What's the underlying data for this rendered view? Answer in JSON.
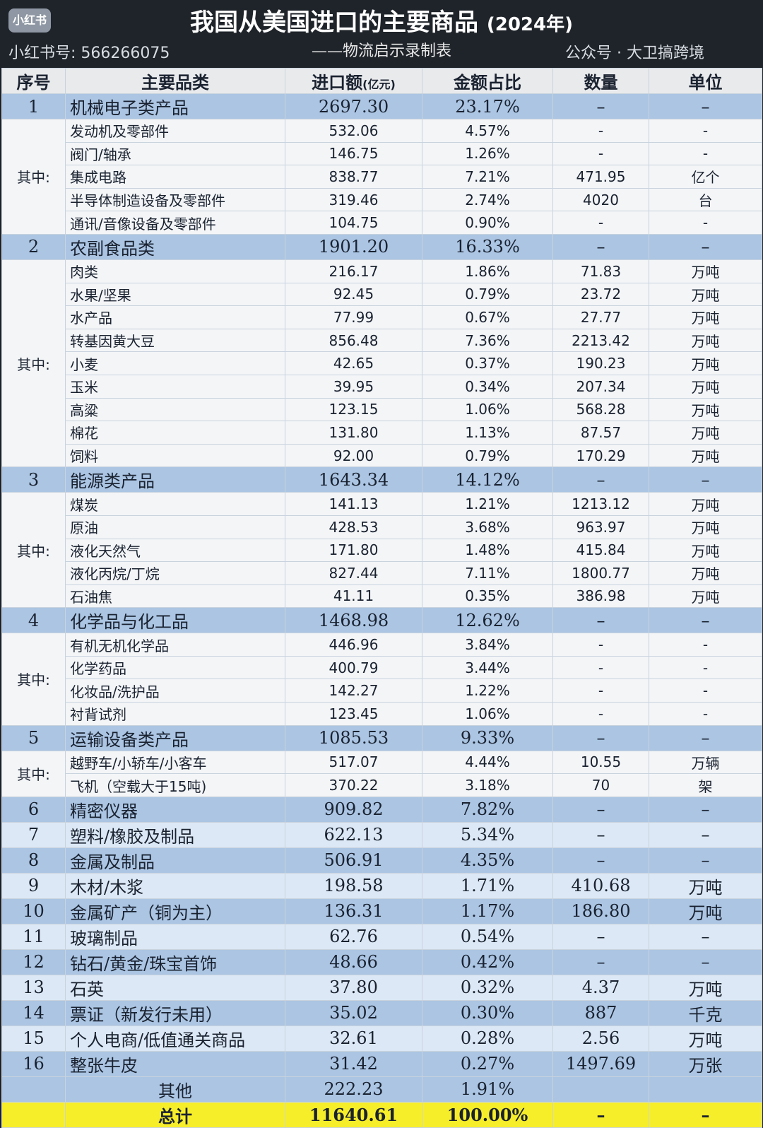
{
  "header": {
    "title": "我国从美国进口的主要商品",
    "year": "(2024年)",
    "subtitle": "——物流启示录制表"
  },
  "columns": [
    "序号",
    "主要品类",
    "进口额",
    "(亿元)",
    "金额占比",
    "数量",
    "单位"
  ],
  "group_label": "其中:",
  "sections": [
    {
      "no": "1",
      "name": "机械电子类产品",
      "amount": "2697.30",
      "share": "23.17%",
      "qty": "–",
      "unit": "–",
      "items": [
        [
          "发动机及零部件",
          "532.06",
          "4.57%",
          "-",
          "-"
        ],
        [
          "阀门/轴承",
          "146.75",
          "1.26%",
          "-",
          "-"
        ],
        [
          "集成电路",
          "838.77",
          "7.21%",
          "471.95",
          "亿个"
        ],
        [
          "半导体制造设备及零部件",
          "319.46",
          "2.74%",
          "4020",
          "台"
        ],
        [
          "通讯/音像设备及零部件",
          "104.75",
          "0.90%",
          "-",
          "-"
        ]
      ]
    },
    {
      "no": "2",
      "name": "农副食品类",
      "amount": "1901.20",
      "share": "16.33%",
      "qty": "–",
      "unit": "–",
      "items": [
        [
          "肉类",
          "216.17",
          "1.86%",
          "71.83",
          "万吨"
        ],
        [
          "水果/坚果",
          "92.45",
          "0.79%",
          "23.72",
          "万吨"
        ],
        [
          "水产品",
          "77.99",
          "0.67%",
          "27.77",
          "万吨"
        ],
        [
          "转基因黄大豆",
          "856.48",
          "7.36%",
          "2213.42",
          "万吨"
        ],
        [
          "小麦",
          "42.65",
          "0.37%",
          "190.23",
          "万吨"
        ],
        [
          "玉米",
          "39.95",
          "0.34%",
          "207.34",
          "万吨"
        ],
        [
          "高粱",
          "123.15",
          "1.06%",
          "568.28",
          "万吨"
        ],
        [
          "棉花",
          "131.80",
          "1.13%",
          "87.57",
          "万吨"
        ],
        [
          "饲料",
          "92.00",
          "0.79%",
          "170.29",
          "万吨"
        ]
      ]
    },
    {
      "no": "3",
      "name": "能源类产品",
      "amount": "1643.34",
      "share": "14.12%",
      "qty": "–",
      "unit": "–",
      "items": [
        [
          "煤炭",
          "141.13",
          "1.21%",
          "1213.12",
          "万吨"
        ],
        [
          "原油",
          "428.53",
          "3.68%",
          "963.97",
          "万吨"
        ],
        [
          "液化天然气",
          "171.80",
          "1.48%",
          "415.84",
          "万吨"
        ],
        [
          "液化丙烷/丁烷",
          "827.44",
          "7.11%",
          "1800.77",
          "万吨"
        ],
        [
          "石油焦",
          "41.11",
          "0.35%",
          "386.98",
          "万吨"
        ]
      ]
    },
    {
      "no": "4",
      "name": "化学品与化工品",
      "amount": "1468.98",
      "share": "12.62%",
      "qty": "–",
      "unit": "–",
      "items": [
        [
          "有机无机化学品",
          "446.96",
          "3.84%",
          "-",
          "-"
        ],
        [
          "化学药品",
          "400.79",
          "3.44%",
          "-",
          "-"
        ],
        [
          "化妆品/洗护品",
          "142.27",
          "1.22%",
          "-",
          "-"
        ],
        [
          "衬背试剂",
          "123.45",
          "1.06%",
          "-",
          "-"
        ]
      ]
    },
    {
      "no": "5",
      "name": "运输设备类产品",
      "amount": "1085.53",
      "share": "9.33%",
      "qty": "–",
      "unit": "–",
      "items": [
        [
          "越野车/小轿车/小客车",
          "517.07",
          "4.44%",
          "10.55",
          "万辆"
        ],
        [
          "飞机（空载大于15吨)",
          "370.22",
          "3.18%",
          "70",
          "架"
        ]
      ]
    }
  ],
  "others": [
    [
      "6",
      "精密仪器",
      "909.82",
      "7.82%",
      "–",
      "–"
    ],
    [
      "7",
      "塑料/橡胶及制品",
      "622.13",
      "5.34%",
      "–",
      "–"
    ],
    [
      "8",
      "金属及制品",
      "506.91",
      "4.35%",
      "–",
      "–"
    ],
    [
      "9",
      "木材/木浆",
      "198.58",
      "1.71%",
      "410.68",
      "万吨"
    ],
    [
      "10",
      "金属矿产（铜为主）",
      "136.31",
      "1.17%",
      "186.80",
      "万吨"
    ],
    [
      "11",
      "玻璃制品",
      "62.76",
      "0.54%",
      "–",
      "–"
    ],
    [
      "12",
      "钻石/黄金/珠宝首饰",
      "48.66",
      "0.42%",
      "–",
      "–"
    ],
    [
      "13",
      "石英",
      "37.80",
      "0.32%",
      "4.37",
      "万吨"
    ],
    [
      "14",
      "票证（新发行未用）",
      "35.02",
      "0.30%",
      "887",
      "千克"
    ],
    [
      "15",
      "个人电商/低值通关商品",
      "32.61",
      "0.28%",
      "2.56",
      "万吨"
    ],
    [
      "16",
      "整张牛皮",
      "31.42",
      "0.27%",
      "1497.69",
      "万张"
    ]
  ],
  "other_row": [
    "",
    "其他",
    "222.23",
    "1.91%",
    "",
    ""
  ],
  "total_row": [
    "",
    "总计",
    "11640.61",
    "100.00%",
    "–",
    "–"
  ],
  "watermarks": {
    "xhs": "小红书号: 566266075",
    "gzh": "公众号 · 大卫搞跨境",
    "badge": "小红书"
  }
}
